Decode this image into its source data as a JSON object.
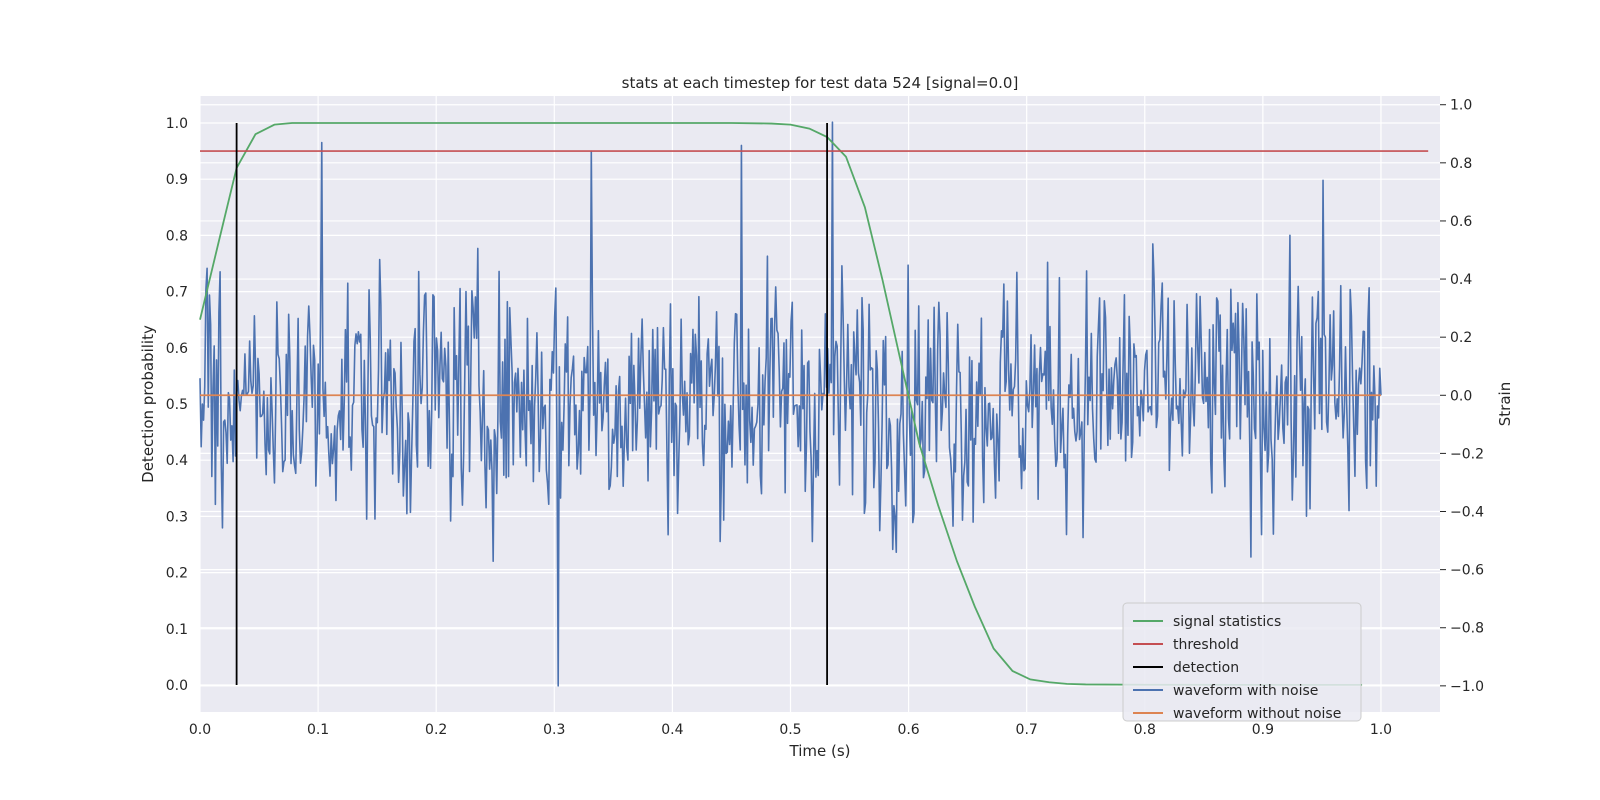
{
  "chart_data": {
    "type": "line",
    "title": "stats at each timestep for test data 524 [signal=0.0]",
    "xlabel": "Time (s)",
    "ylabel": "Detection probability",
    "ylabel_right": "Strain",
    "xlim": [
      0.0,
      1.05
    ],
    "ylim": [
      -0.048,
      1.048
    ],
    "ylim_right": [
      -1.09,
      1.03
    ],
    "x_ticks": [
      "0.0",
      "0.1",
      "0.2",
      "0.3",
      "0.4",
      "0.5",
      "0.6",
      "0.7",
      "0.8",
      "0.9",
      "1.0"
    ],
    "y_ticks": [
      "0.0",
      "0.1",
      "0.2",
      "0.3",
      "0.4",
      "0.5",
      "0.6",
      "0.7",
      "0.8",
      "0.9",
      "1.0"
    ],
    "y_ticks_right": [
      "−1.0",
      "−0.8",
      "−0.6",
      "−0.4",
      "−0.2",
      "0.0",
      "0.2",
      "0.4",
      "0.6",
      "0.8",
      "1.0"
    ],
    "grid": true,
    "legend_position": "bottom-right",
    "series": [
      {
        "name": "signal statistics",
        "axis": "left",
        "color": "#55a868",
        "x": [
          0.0,
          0.016,
          0.031,
          0.047,
          0.063,
          0.078,
          0.1,
          0.2,
          0.3,
          0.4,
          0.45,
          0.484,
          0.5,
          0.516,
          0.531,
          0.547,
          0.563,
          0.578,
          0.594,
          0.609,
          0.625,
          0.641,
          0.656,
          0.672,
          0.688,
          0.703,
          0.719,
          0.734,
          0.75,
          0.8,
          0.9,
          0.984
        ],
        "values": [
          0.65,
          0.79,
          0.92,
          0.98,
          0.997,
          1.0,
          1.0,
          1.0,
          1.0,
          1.0,
          1.0,
          0.999,
          0.997,
          0.99,
          0.975,
          0.94,
          0.85,
          0.72,
          0.57,
          0.43,
          0.32,
          0.22,
          0.14,
          0.065,
          0.025,
          0.01,
          0.005,
          0.002,
          0.001,
          0.0005,
          0.0003,
          0.0002
        ]
      },
      {
        "name": "threshold",
        "axis": "left",
        "color": "#c44e52",
        "x": [
          0.0,
          1.04
        ],
        "values": [
          0.95,
          0.95
        ]
      },
      {
        "name": "detection",
        "axis": "left",
        "color": "#000000",
        "type": "vlines",
        "x": [
          0.031,
          0.531
        ],
        "range": [
          0.0,
          1.0
        ]
      },
      {
        "name": "waveform with noise",
        "axis": "right",
        "color": "#4c72b0",
        "x_range": [
          0.0,
          1.0
        ],
        "n_points": 1000,
        "values_note": "strain noise fluctuating within about [-1.0, 1.0]",
        "highlights": [
          {
            "x": 0.103,
            "y": 0.87
          },
          {
            "x": 0.303,
            "y": -1.0
          },
          {
            "x": 0.331,
            "y": 0.84
          },
          {
            "x": 0.458,
            "y": 0.86
          },
          {
            "x": 0.536,
            "y": 0.94
          },
          {
            "x": 0.951,
            "y": 0.74
          }
        ]
      },
      {
        "name": "waveform without noise",
        "axis": "right",
        "color": "#dd8452",
        "x": [
          0.0,
          1.0
        ],
        "values": [
          0.0,
          0.0
        ]
      }
    ]
  }
}
